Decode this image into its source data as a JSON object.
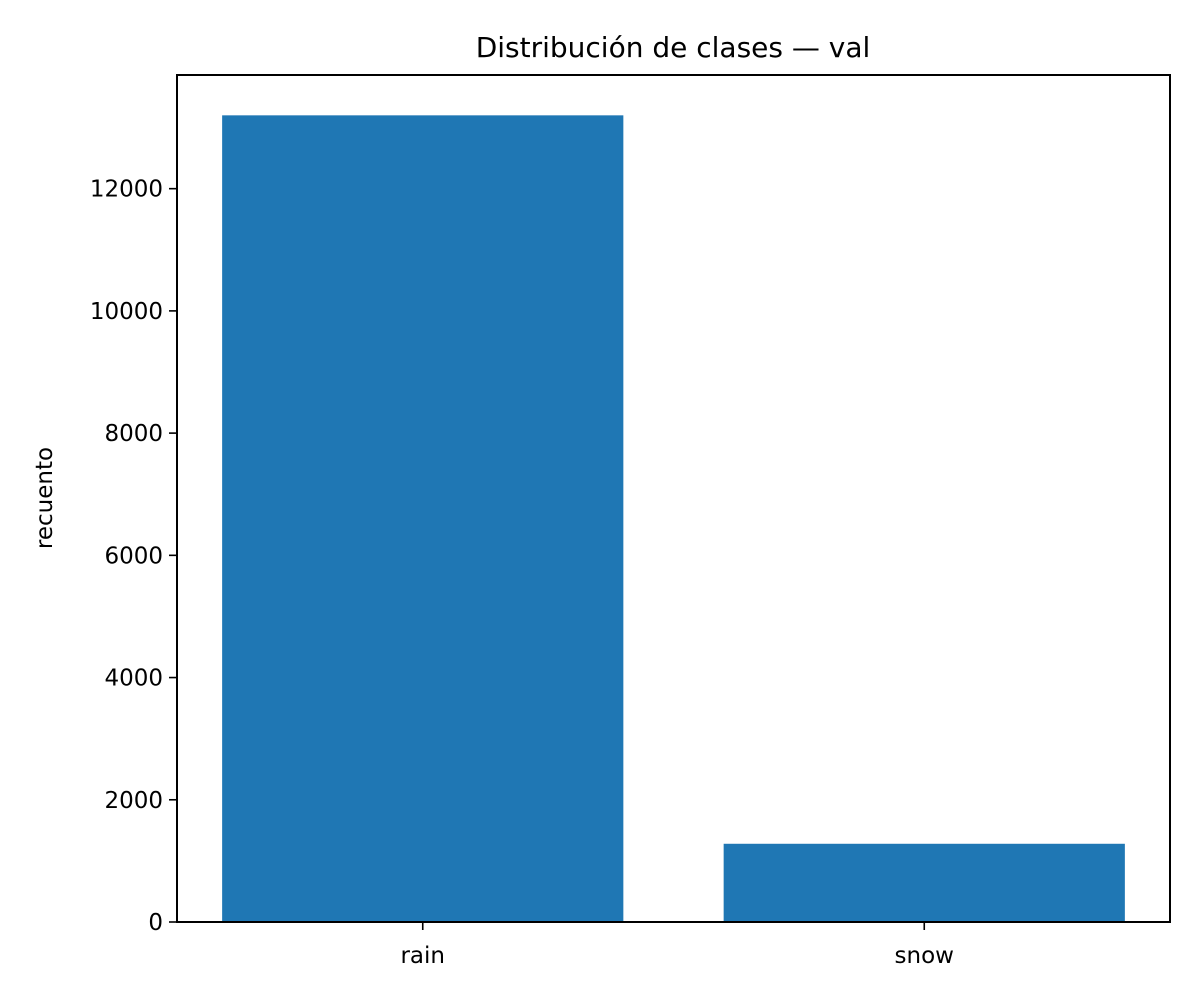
{
  "chart_data": {
    "type": "bar",
    "title": "Distribución de clases — val",
    "xlabel": "",
    "ylabel": "recuento",
    "categories": [
      "rain",
      "snow"
    ],
    "values": [
      13200,
      1280
    ],
    "ylim": [
      0,
      13860
    ],
    "yticks": [
      0,
      2000,
      4000,
      6000,
      8000,
      10000,
      12000
    ],
    "ytick_labels": [
      "0",
      "2000",
      "4000",
      "6000",
      "8000",
      "10000",
      "12000"
    ],
    "bar_color": "#1f77b4",
    "grid": false,
    "legend": "none"
  }
}
